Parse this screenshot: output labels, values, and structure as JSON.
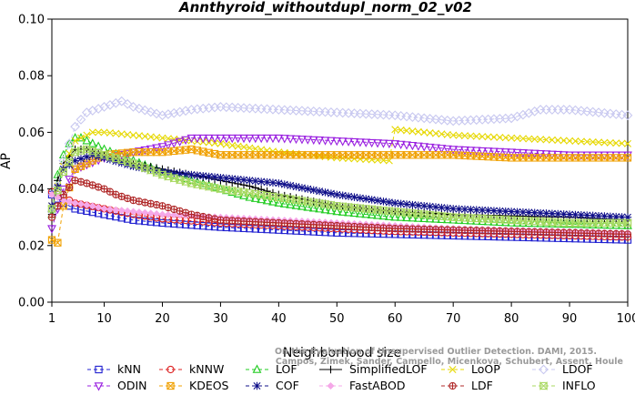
{
  "chart_data": {
    "type": "line",
    "title": "Annthyroid_withoutdupl_norm_02_v02",
    "xlabel": "Neighborhood size",
    "ylabel": "AP",
    "xlim": [
      1,
      100
    ],
    "ylim": [
      0.0,
      0.1
    ],
    "xticks": [
      1,
      10,
      20,
      30,
      40,
      50,
      60,
      70,
      80,
      90,
      100
    ],
    "yticks": [
      "0.00",
      "0.02",
      "0.04",
      "0.06",
      "0.08",
      "0.10"
    ],
    "credit_lines": [
      "Campos, Zimek, Sander, Campello, Micenkova, Schubert, Assent, Houle",
      "On the Evaluation of Unsupervised Outlier Detection. DAMI, 2015."
    ],
    "legend_position": "bottom",
    "series": [
      {
        "name": "kNN",
        "color": "#1f1fd0",
        "marker": "square",
        "dash": "4,3",
        "points": [
          [
            1,
            0.038
          ],
          [
            3,
            0.035
          ],
          [
            5,
            0.033
          ],
          [
            10,
            0.031
          ],
          [
            15,
            0.029
          ],
          [
            20,
            0.028
          ],
          [
            30,
            0.0265
          ],
          [
            40,
            0.0255
          ],
          [
            50,
            0.0245
          ],
          [
            60,
            0.024
          ],
          [
            70,
            0.0235
          ],
          [
            80,
            0.023
          ],
          [
            90,
            0.0225
          ],
          [
            100,
            0.022
          ]
        ]
      },
      {
        "name": "kNNW",
        "color": "#dd2222",
        "marker": "circle",
        "dash": "4,3",
        "points": [
          [
            1,
            0.039
          ],
          [
            3,
            0.037
          ],
          [
            5,
            0.035
          ],
          [
            10,
            0.033
          ],
          [
            15,
            0.031
          ],
          [
            20,
            0.0295
          ],
          [
            30,
            0.028
          ],
          [
            40,
            0.027
          ],
          [
            50,
            0.026
          ],
          [
            60,
            0.025
          ],
          [
            70,
            0.0245
          ],
          [
            80,
            0.024
          ],
          [
            90,
            0.0235
          ],
          [
            100,
            0.023
          ]
        ]
      },
      {
        "name": "LOF",
        "color": "#22cc22",
        "marker": "triangle",
        "dash": "4,3",
        "points": [
          [
            1,
            0.031
          ],
          [
            2,
            0.045
          ],
          [
            3,
            0.052
          ],
          [
            4,
            0.056
          ],
          [
            5,
            0.058
          ],
          [
            6,
            0.058
          ],
          [
            8,
            0.056
          ],
          [
            10,
            0.054
          ],
          [
            15,
            0.05
          ],
          [
            20,
            0.046
          ],
          [
            25,
            0.043
          ],
          [
            30,
            0.04
          ],
          [
            35,
            0.037
          ],
          [
            40,
            0.035
          ],
          [
            50,
            0.032
          ],
          [
            60,
            0.03
          ],
          [
            70,
            0.029
          ],
          [
            80,
            0.028
          ],
          [
            90,
            0.0275
          ],
          [
            100,
            0.027
          ]
        ]
      },
      {
        "name": "SimplifiedLOF",
        "color": "#000000",
        "marker": "plus",
        "dash": "",
        "points": [
          [
            1,
            0.031
          ],
          [
            2,
            0.043
          ],
          [
            3,
            0.049
          ],
          [
            5,
            0.054
          ],
          [
            7,
            0.054
          ],
          [
            10,
            0.052
          ],
          [
            15,
            0.049
          ],
          [
            20,
            0.047
          ],
          [
            25,
            0.045
          ],
          [
            30,
            0.043
          ],
          [
            35,
            0.041
          ],
          [
            40,
            0.038
          ],
          [
            45,
            0.036
          ],
          [
            50,
            0.034
          ],
          [
            60,
            0.032
          ],
          [
            70,
            0.031
          ],
          [
            80,
            0.0305
          ],
          [
            90,
            0.03
          ],
          [
            100,
            0.029
          ]
        ]
      },
      {
        "name": "LoOP",
        "color": "#e6d800",
        "marker": "x",
        "dash": "4,3",
        "points": [
          [
            1,
            0.034
          ],
          [
            3,
            0.048
          ],
          [
            5,
            0.057
          ],
          [
            8,
            0.06
          ],
          [
            10,
            0.06
          ],
          [
            15,
            0.059
          ],
          [
            20,
            0.058
          ],
          [
            25,
            0.057
          ],
          [
            30,
            0.056
          ],
          [
            40,
            0.053
          ],
          [
            50,
            0.051
          ],
          [
            59,
            0.05
          ],
          [
            60,
            0.061
          ],
          [
            65,
            0.06
          ],
          [
            70,
            0.059
          ],
          [
            80,
            0.058
          ],
          [
            90,
            0.057
          ],
          [
            100,
            0.056
          ]
        ]
      },
      {
        "name": "LDOF",
        "color": "#c8c8f0",
        "marker": "diamond",
        "dash": "4,3",
        "points": [
          [
            1,
            0.032
          ],
          [
            3,
            0.05
          ],
          [
            5,
            0.062
          ],
          [
            7,
            0.067
          ],
          [
            10,
            0.069
          ],
          [
            13,
            0.071
          ],
          [
            15,
            0.069
          ],
          [
            20,
            0.066
          ],
          [
            25,
            0.068
          ],
          [
            30,
            0.069
          ],
          [
            40,
            0.068
          ],
          [
            50,
            0.067
          ],
          [
            60,
            0.066
          ],
          [
            70,
            0.064
          ],
          [
            80,
            0.065
          ],
          [
            85,
            0.068
          ],
          [
            90,
            0.068
          ],
          [
            100,
            0.066
          ]
        ]
      },
      {
        "name": "ODIN",
        "color": "#9a20e0",
        "marker": "triangle-down",
        "dash": "4,3",
        "points": [
          [
            1,
            0.026
          ],
          [
            3,
            0.04
          ],
          [
            5,
            0.047
          ],
          [
            10,
            0.051
          ],
          [
            15,
            0.053
          ],
          [
            20,
            0.055
          ],
          [
            25,
            0.058
          ],
          [
            30,
            0.058
          ],
          [
            40,
            0.058
          ],
          [
            50,
            0.057
          ],
          [
            60,
            0.056
          ],
          [
            70,
            0.054
          ],
          [
            80,
            0.053
          ],
          [
            90,
            0.052
          ],
          [
            100,
            0.052
          ]
        ]
      },
      {
        "name": "KDEOS",
        "color": "#f0a000",
        "marker": "boxx",
        "dash": "4,3",
        "points": [
          [
            1,
            0.022
          ],
          [
            2,
            0.021
          ],
          [
            3,
            0.034
          ],
          [
            5,
            0.047
          ],
          [
            8,
            0.05
          ],
          [
            10,
            0.052
          ],
          [
            15,
            0.053
          ],
          [
            20,
            0.053
          ],
          [
            25,
            0.054
          ],
          [
            30,
            0.052
          ],
          [
            40,
            0.052
          ],
          [
            50,
            0.052
          ],
          [
            60,
            0.052
          ],
          [
            70,
            0.052
          ],
          [
            80,
            0.051
          ],
          [
            90,
            0.051
          ],
          [
            100,
            0.051
          ]
        ]
      },
      {
        "name": "COF",
        "color": "#10108a",
        "marker": "star",
        "dash": "4,3",
        "points": [
          [
            1,
            0.034
          ],
          [
            3,
            0.047
          ],
          [
            5,
            0.05
          ],
          [
            8,
            0.052
          ],
          [
            10,
            0.051
          ],
          [
            15,
            0.048
          ],
          [
            20,
            0.046
          ],
          [
            25,
            0.045
          ],
          [
            30,
            0.044
          ],
          [
            40,
            0.042
          ],
          [
            50,
            0.038
          ],
          [
            60,
            0.035
          ],
          [
            70,
            0.033
          ],
          [
            80,
            0.032
          ],
          [
            90,
            0.031
          ],
          [
            100,
            0.03
          ]
        ]
      },
      {
        "name": "FastABOD",
        "color": "#f5a8e8",
        "marker": "diamond-filled",
        "dash": "4,3",
        "points": [
          [
            1,
            0.038
          ],
          [
            3,
            0.036
          ],
          [
            5,
            0.035
          ],
          [
            8,
            0.034
          ],
          [
            10,
            0.033
          ],
          [
            15,
            0.032
          ],
          [
            20,
            0.031
          ],
          [
            25,
            0.0305
          ],
          [
            30,
            0.03
          ],
          [
            40,
            0.029
          ],
          [
            50,
            0.028
          ],
          [
            60,
            0.027
          ],
          [
            70,
            0.026
          ],
          [
            80,
            0.0255
          ],
          [
            90,
            0.025
          ],
          [
            100,
            0.0245
          ]
        ]
      },
      {
        "name": "LDF",
        "color": "#b02828",
        "marker": "circle-cross",
        "dash": "4,3",
        "points": [
          [
            1,
            0.03
          ],
          [
            3,
            0.038
          ],
          [
            5,
            0.043
          ],
          [
            7,
            0.042
          ],
          [
            10,
            0.04
          ],
          [
            12,
            0.038
          ],
          [
            15,
            0.036
          ],
          [
            20,
            0.034
          ],
          [
            25,
            0.031
          ],
          [
            30,
            0.029
          ],
          [
            40,
            0.028
          ],
          [
            50,
            0.027
          ],
          [
            60,
            0.026
          ],
          [
            70,
            0.0255
          ],
          [
            80,
            0.025
          ],
          [
            90,
            0.0245
          ],
          [
            100,
            0.024
          ]
        ]
      },
      {
        "name": "INFLO",
        "color": "#a8d860",
        "marker": "hourglass",
        "dash": "4,3",
        "points": [
          [
            1,
            0.033
          ],
          [
            3,
            0.046
          ],
          [
            5,
            0.053
          ],
          [
            7,
            0.054
          ],
          [
            10,
            0.052
          ],
          [
            15,
            0.049
          ],
          [
            20,
            0.045
          ],
          [
            25,
            0.042
          ],
          [
            30,
            0.04
          ],
          [
            40,
            0.037
          ],
          [
            50,
            0.034
          ],
          [
            60,
            0.032
          ],
          [
            70,
            0.03
          ],
          [
            80,
            0.029
          ],
          [
            90,
            0.028
          ],
          [
            100,
            0.028
          ]
        ]
      }
    ],
    "legend_rows": [
      [
        "kNN",
        "kNNW",
        "LOF",
        "SimplifiedLOF",
        "LoOP",
        "LDOF"
      ],
      [
        "ODIN",
        "KDEOS",
        "COF",
        "FastABOD",
        "LDF",
        "INFLO"
      ]
    ]
  }
}
